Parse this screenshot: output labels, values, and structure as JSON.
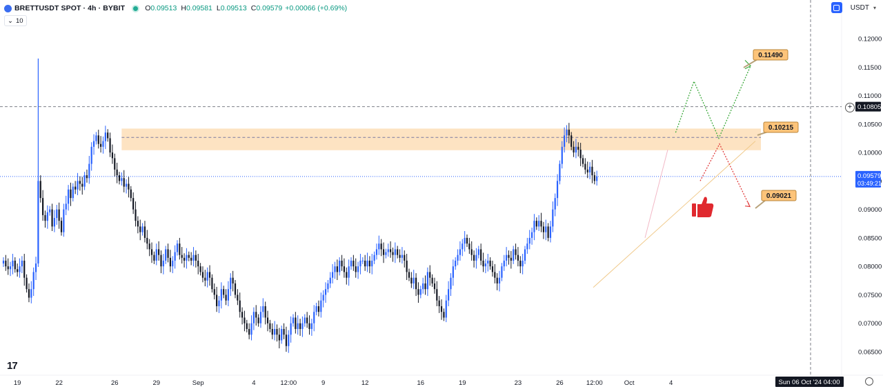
{
  "header": {
    "symbol": "BRETTUSDT SPOT · 4h · BYBIT",
    "o_label": "O",
    "o": "0.09513",
    "h_label": "H",
    "h": "0.09581",
    "l_label": "L",
    "l": "0.09513",
    "c_label": "C",
    "c": "0.09579",
    "change": "+0.00066 (+0.69%)"
  },
  "indicator": {
    "chevron": "⌄",
    "value": "10"
  },
  "currency": {
    "label": "USDT",
    "chevron": "▾"
  },
  "logo": "17",
  "colors": {
    "up": "#2962ff",
    "down": "#131722",
    "zone": "#fcd9ae",
    "accent": "#2962ff"
  },
  "chart_data": {
    "type": "candlestick",
    "ylim": [
      0.062,
      0.125
    ],
    "y_ticks": [
      "0.06500",
      "0.07000",
      "0.07500",
      "0.08000",
      "0.08500",
      "0.09000",
      "0.09500",
      "0.10000",
      "0.10500",
      "0.11000",
      "0.11500",
      "0.12000"
    ],
    "x_ticks": [
      {
        "label": "19",
        "bar": 6
      },
      {
        "label": "22",
        "bar": 24
      },
      {
        "label": "26",
        "bar": 48
      },
      {
        "label": "29",
        "bar": 66
      },
      {
        "label": "Sep",
        "bar": 84
      },
      {
        "label": "4",
        "bar": 108
      },
      {
        "label": "12:00",
        "bar": 123
      },
      {
        "label": "9",
        "bar": 138
      },
      {
        "label": "12",
        "bar": 156
      },
      {
        "label": "16",
        "bar": 180
      },
      {
        "label": "19",
        "bar": 198
      },
      {
        "label": "23",
        "bar": 222
      },
      {
        "label": "26",
        "bar": 240
      },
      {
        "label": "12:00",
        "bar": 255
      },
      {
        "label": "Oct",
        "bar": 270
      },
      {
        "label": "4",
        "bar": 288
      }
    ],
    "closes": [
      0.081,
      0.08,
      0.0795,
      0.08,
      0.081,
      0.0795,
      0.079,
      0.08,
      0.081,
      0.078,
      0.076,
      0.0745,
      0.076,
      0.079,
      0.0805,
      0.095,
      0.092,
      0.089,
      0.088,
      0.0895,
      0.09,
      0.087,
      0.0885,
      0.09,
      0.088,
      0.086,
      0.09,
      0.091,
      0.0935,
      0.092,
      0.094,
      0.0935,
      0.095,
      0.0945,
      0.094,
      0.096,
      0.0955,
      0.098,
      0.101,
      0.102,
      0.103,
      0.1015,
      0.101,
      0.102,
      0.1035,
      0.1025,
      0.1,
      0.099,
      0.097,
      0.096,
      0.095,
      0.0955,
      0.094,
      0.0945,
      0.0935,
      0.092,
      0.09,
      0.088,
      0.087,
      0.086,
      0.087,
      0.085,
      0.084,
      0.083,
      0.082,
      0.081,
      0.083,
      0.082,
      0.08,
      0.081,
      0.083,
      0.0815,
      0.08,
      0.081,
      0.0825,
      0.084,
      0.082,
      0.0815,
      0.081,
      0.082,
      0.0815,
      0.081,
      0.082,
      0.081,
      0.08,
      0.079,
      0.078,
      0.0775,
      0.079,
      0.078,
      0.076,
      0.075,
      0.073,
      0.074,
      0.076,
      0.075,
      0.074,
      0.076,
      0.078,
      0.077,
      0.075,
      0.074,
      0.072,
      0.071,
      0.07,
      0.069,
      0.068,
      0.07,
      0.072,
      0.071,
      0.07,
      0.072,
      0.073,
      0.071,
      0.07,
      0.069,
      0.068,
      0.069,
      0.068,
      0.067,
      0.069,
      0.068,
      0.066,
      0.068,
      0.07,
      0.071,
      0.069,
      0.07,
      0.069,
      0.07,
      0.071,
      0.07,
      0.069,
      0.07,
      0.072,
      0.073,
      0.072,
      0.074,
      0.075,
      0.076,
      0.077,
      0.078,
      0.079,
      0.08,
      0.079,
      0.081,
      0.08,
      0.079,
      0.078,
      0.08,
      0.081,
      0.08,
      0.079,
      0.08,
      0.081,
      0.081,
      0.08,
      0.081,
      0.08,
      0.081,
      0.082,
      0.083,
      0.084,
      0.083,
      0.082,
      0.0825,
      0.083,
      0.0825,
      0.082,
      0.083,
      0.082,
      0.0815,
      0.082,
      0.081,
      0.079,
      0.078,
      0.077,
      0.078,
      0.076,
      0.075,
      0.076,
      0.077,
      0.076,
      0.079,
      0.078,
      0.077,
      0.076,
      0.074,
      0.073,
      0.072,
      0.071,
      0.074,
      0.076,
      0.078,
      0.08,
      0.081,
      0.082,
      0.083,
      0.084,
      0.085,
      0.084,
      0.083,
      0.082,
      0.081,
      0.082,
      0.083,
      0.081,
      0.08,
      0.0805,
      0.081,
      0.08,
      0.079,
      0.078,
      0.077,
      0.078,
      0.08,
      0.081,
      0.082,
      0.0815,
      0.081,
      0.083,
      0.082,
      0.081,
      0.08,
      0.081,
      0.083,
      0.084,
      0.085,
      0.086,
      0.088,
      0.087,
      0.088,
      0.087,
      0.086,
      0.087,
      0.085,
      0.087,
      0.09,
      0.092,
      0.095,
      0.098,
      0.101,
      0.103,
      0.104,
      0.103,
      0.101,
      0.1,
      0.101,
      0.1005,
      0.099,
      0.098,
      0.097,
      0.0965,
      0.0975,
      0.096,
      0.095,
      0.0958
    ]
  },
  "price_levels": {
    "current_price": "0.09579",
    "countdown": "03:49:21",
    "dashed_level": "0.10805",
    "zone": [
      0.1004,
      0.1042
    ]
  },
  "annotations": [
    {
      "label": "0.11490",
      "value": 0.1149
    },
    {
      "label": "0.10215",
      "value": 0.10215
    },
    {
      "label": "0.09021",
      "value": 0.09021
    }
  ],
  "crosshair_label": "Sun 06 Oct '24   04:00"
}
